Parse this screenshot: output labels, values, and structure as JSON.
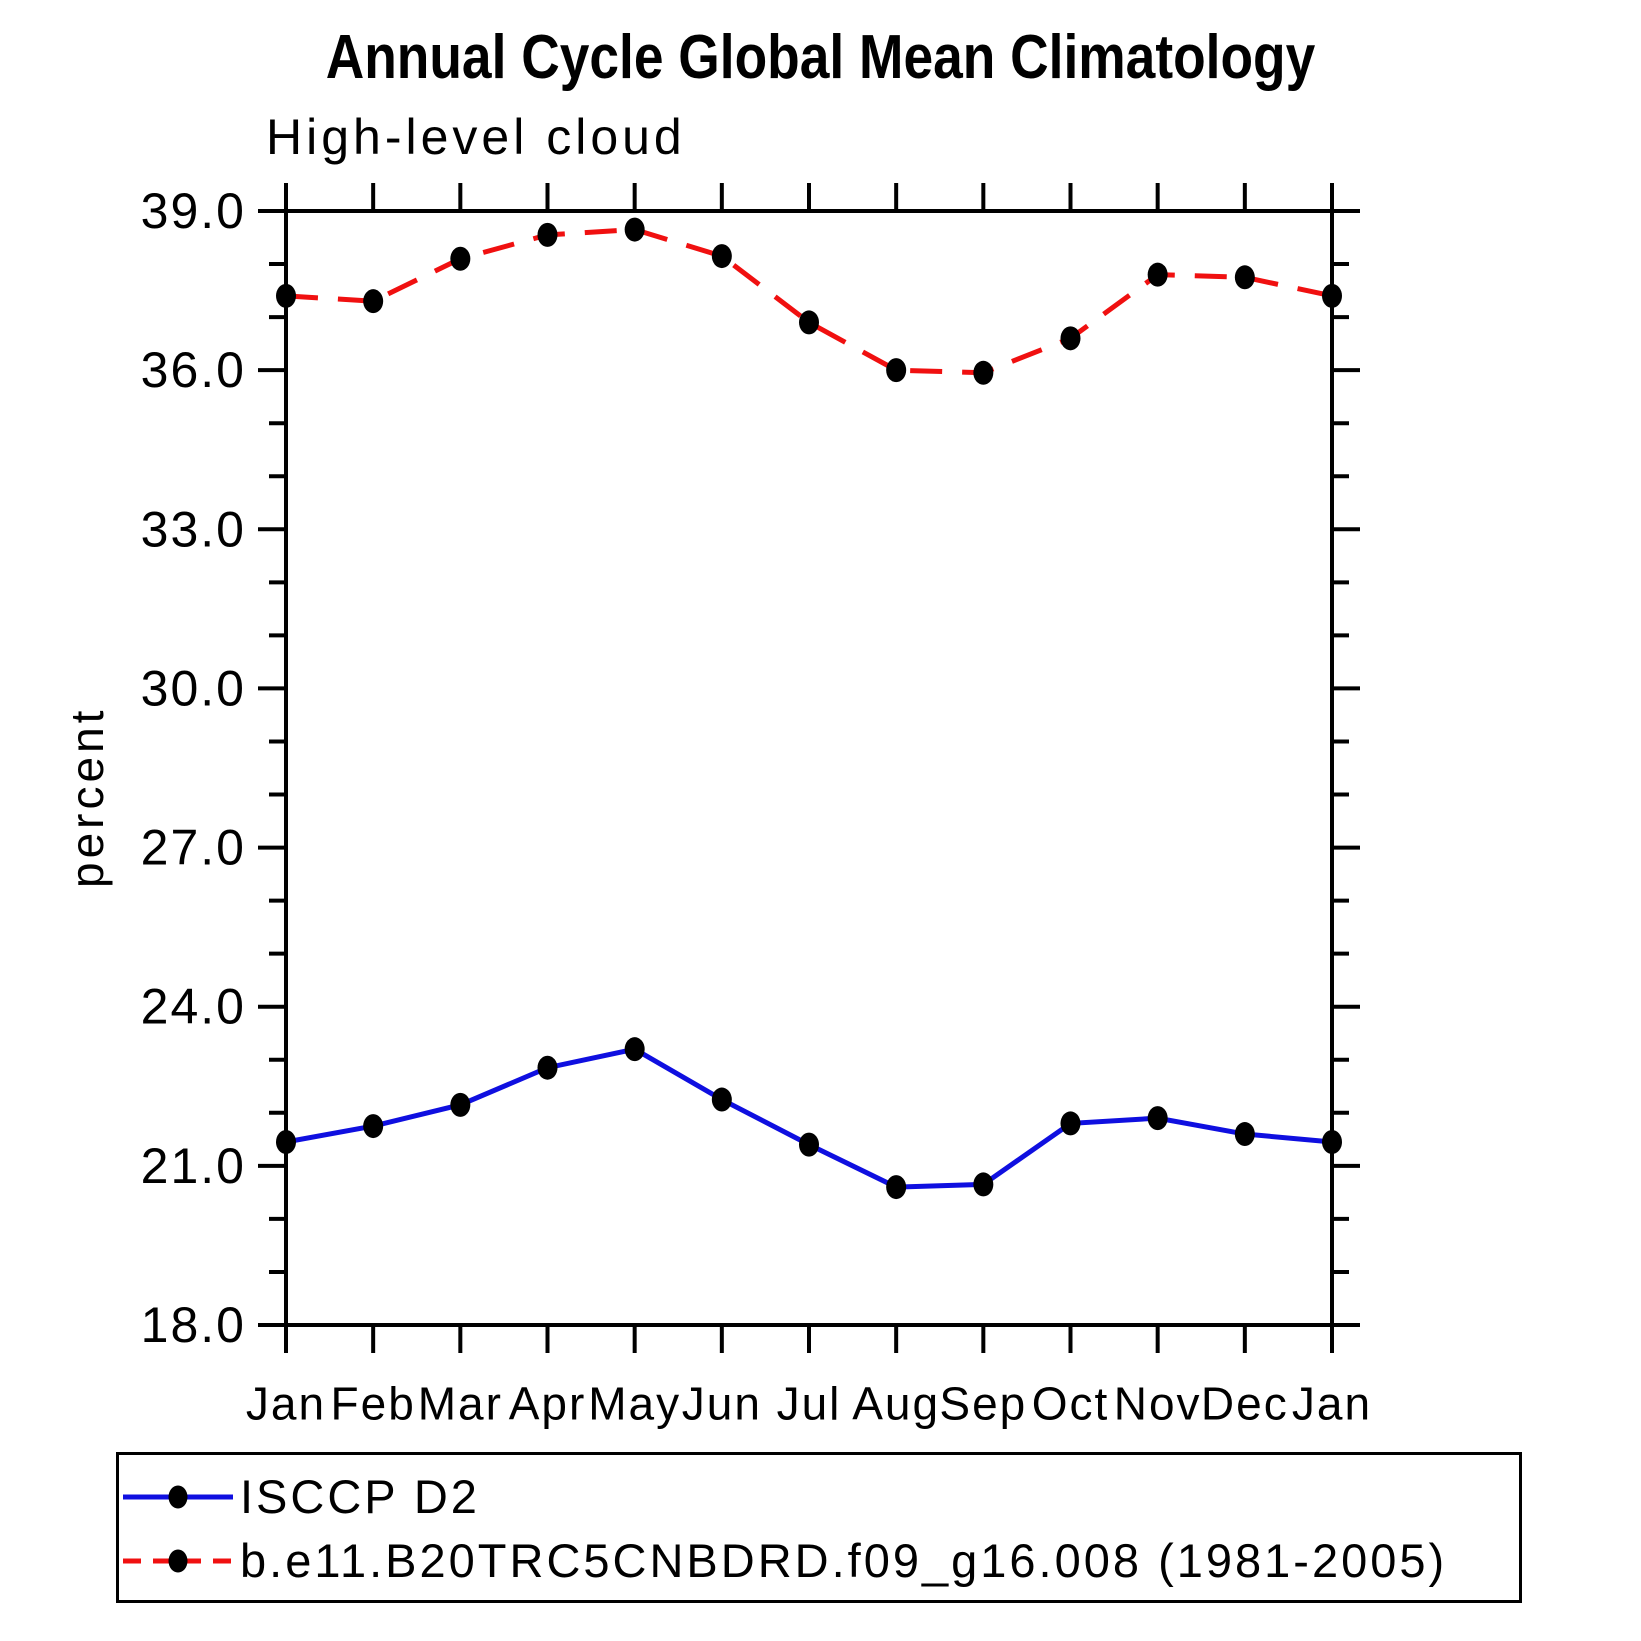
{
  "chart_data": {
    "type": "line",
    "title": "Annual Cycle Global Mean Climatology",
    "subtitle": "High-level cloud",
    "ylabel": "percent",
    "xlabel": "",
    "x_categories": [
      "Jan",
      "Feb",
      "Mar",
      "Apr",
      "May",
      "Jun",
      "Jul",
      "Aug",
      "Sep",
      "Oct",
      "Nov",
      "Dec",
      "Jan"
    ],
    "ylim": [
      18.0,
      39.0
    ],
    "y_major_step": 3.0,
    "y_minor_step": 1.0,
    "y_tick_labels": [
      "18.0",
      "21.0",
      "24.0",
      "27.0",
      "30.0",
      "33.0",
      "36.0",
      "39.0"
    ],
    "grid": false,
    "legend_position": "bottom-left-box",
    "marker": {
      "shape": "filled-circle",
      "color": "#000000"
    },
    "series": [
      {
        "name": "ISCCP D2",
        "color": "#0f0fe0",
        "line_style": "solid",
        "values": [
          21.45,
          21.75,
          22.15,
          22.85,
          23.2,
          22.25,
          21.4,
          20.6,
          20.65,
          21.8,
          21.9,
          21.6,
          21.45
        ]
      },
      {
        "name": "b.e11.B20TRC5CNBDRD.f09_g16.008 (1981-2005)",
        "color": "#f01010",
        "line_style": "dashed",
        "values": [
          37.4,
          37.3,
          38.1,
          38.55,
          38.65,
          38.15,
          36.9,
          36.0,
          35.95,
          36.6,
          37.8,
          37.75,
          37.4
        ]
      }
    ]
  }
}
